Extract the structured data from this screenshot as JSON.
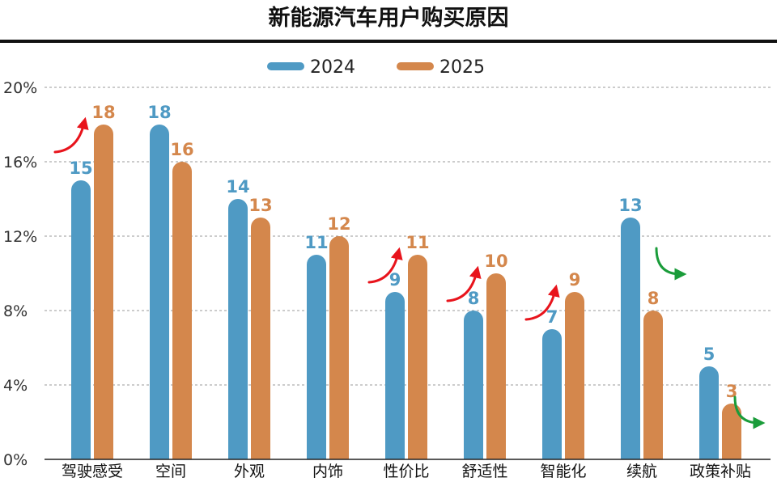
{
  "chart_data": {
    "type": "bar",
    "title": "新能源汽车用户购买原因",
    "categories": [
      "驾驶感受",
      "空间",
      "外观",
      "内饰",
      "性价比",
      "舒适性",
      "智能化",
      "续航",
      "政策补贴"
    ],
    "series": [
      {
        "name": "2024",
        "color": "#4f9ac4",
        "values": [
          15,
          18,
          14,
          11,
          9,
          8,
          7,
          13,
          5
        ]
      },
      {
        "name": "2025",
        "color": "#d4874c",
        "values": [
          18,
          16,
          13,
          12,
          11,
          10,
          9,
          8,
          3
        ]
      }
    ],
    "yticks": [
      "0%",
      "4%",
      "8%",
      "12%",
      "16%",
      "20%"
    ],
    "ylim": [
      0,
      20
    ],
    "grid": true,
    "legend_position": "top-center",
    "annotations": [
      {
        "category": "驾驶感受",
        "trend": "up",
        "color": "#e8141c"
      },
      {
        "category": "性价比",
        "trend": "up",
        "color": "#e8141c"
      },
      {
        "category": "舒适性",
        "trend": "up",
        "color": "#e8141c"
      },
      {
        "category": "智能化",
        "trend": "up",
        "color": "#e8141c"
      },
      {
        "category": "续航",
        "trend": "down",
        "color": "#1a9c3a"
      },
      {
        "category": "政策补贴",
        "trend": "down",
        "color": "#1a9c3a"
      }
    ]
  }
}
